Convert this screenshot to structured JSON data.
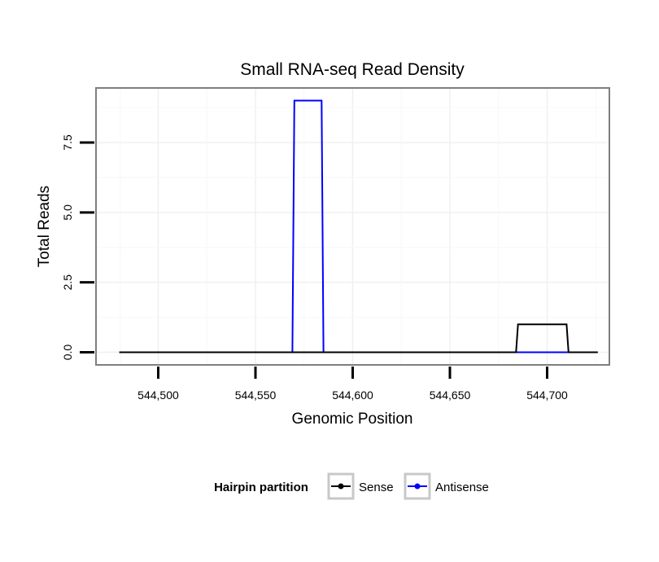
{
  "chart_data": {
    "type": "line",
    "title": "Small RNA-seq Read Density",
    "xlabel": "Genomic Position",
    "ylabel": "Total Reads",
    "xlim": [
      544468,
      544732
    ],
    "ylim": [
      -0.45,
      9.45
    ],
    "x_ticks": [
      544500,
      544550,
      544600,
      544650,
      544700
    ],
    "x_tick_labels": [
      "544,500",
      "544,550",
      "544,600",
      "544,650",
      "544,700"
    ],
    "y_ticks": [
      0,
      2.5,
      5,
      7.5
    ],
    "y_tick_labels": [
      "0.0",
      "2.5",
      "5.0",
      "7.5"
    ],
    "grid": true,
    "legend": {
      "title": "Hairpin partition",
      "position": "bottom"
    },
    "series": [
      {
        "name": "Sense",
        "color": "#000000",
        "x": [
          544480,
          544684,
          544685,
          544710,
          544711,
          544726
        ],
        "y": [
          0,
          0,
          1,
          1,
          0,
          0
        ]
      },
      {
        "name": "Antisense",
        "color": "#0000ff",
        "x": [
          544480,
          544569,
          544570,
          544584,
          544585,
          544726
        ],
        "y": [
          0,
          0,
          9,
          9,
          0,
          0
        ]
      }
    ]
  }
}
